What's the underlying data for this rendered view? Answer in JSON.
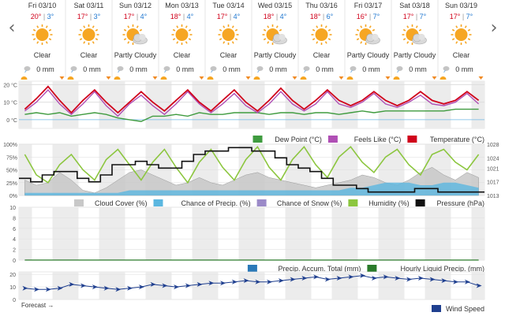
{
  "days": [
    {
      "date": "Fri 03/10",
      "high": "20°",
      "low": "3°",
      "condition": "Clear",
      "icon": "sun-icon",
      "precip": "0 mm"
    },
    {
      "date": "Sat 03/11",
      "high": "17°",
      "low": "3°",
      "condition": "Clear",
      "icon": "sun-icon",
      "precip": "0 mm"
    },
    {
      "date": "Sun 03/12",
      "high": "17°",
      "low": "4°",
      "condition": "Partly Cloudy",
      "icon": "partly-cloudy-icon",
      "precip": "0 mm"
    },
    {
      "date": "Mon 03/13",
      "high": "18°",
      "low": "4°",
      "condition": "Clear",
      "icon": "sun-icon",
      "precip": "0 mm"
    },
    {
      "date": "Tue 03/14",
      "high": "17°",
      "low": "4°",
      "condition": "Clear",
      "icon": "sun-icon",
      "precip": "0 mm"
    },
    {
      "date": "Wed 03/15",
      "high": "18°",
      "low": "4°",
      "condition": "Partly Cloudy",
      "icon": "partly-cloudy-icon",
      "precip": "0 mm"
    },
    {
      "date": "Thu 03/16",
      "high": "18°",
      "low": "6°",
      "condition": "Clear",
      "icon": "sun-icon",
      "precip": "0 mm"
    },
    {
      "date": "Fri 03/17",
      "high": "16°",
      "low": "7°",
      "condition": "Partly Cloudy",
      "icon": "partly-cloudy-icon",
      "precip": "0 mm"
    },
    {
      "date": "Sat 03/18",
      "high": "17°",
      "low": "7°",
      "condition": "Partly Cloudy",
      "icon": "partly-cloudy-icon",
      "precip": "0 mm"
    },
    {
      "date": "Sun 03/19",
      "high": "17°",
      "low": "7°",
      "condition": "Clear",
      "icon": "sun-icon",
      "precip": "0 mm"
    }
  ],
  "colors": {
    "high": "#d0021b",
    "low": "#1f77d0",
    "temperature": "#d0021b",
    "feels_like": "#b04fb5",
    "dew_point": "#3f9b3f",
    "cloud_cover": "#c8c8c8",
    "chance_precip": "#5bb7e0",
    "chance_snow": "#9b8ac8",
    "humidity": "#8cc63f",
    "pressure": "#111111",
    "precip_total": "#2b79b8",
    "hourly_liquid": "#2a7a2a",
    "wind_speed": "#1f3f8f",
    "sun": "#f6a623"
  },
  "forecast_label": "Forecast →",
  "chart_data": [
    {
      "type": "line",
      "chart": "temperature",
      "y_unit": "°C",
      "yticks": [
        "20 °C",
        "10 °C",
        "0 °C"
      ],
      "ylim": [
        -5,
        22
      ],
      "series": [
        {
          "name": "Dew Point (°C)",
          "color": "#3f9b3f",
          "values": [
            3,
            4,
            3,
            4,
            2,
            3,
            4,
            3,
            1,
            0,
            -1,
            2,
            2,
            3,
            2,
            4,
            3,
            3,
            4,
            4,
            4,
            3,
            4,
            4,
            3,
            4,
            4,
            3,
            4,
            5,
            4,
            5,
            5,
            5,
            5,
            5,
            5,
            6,
            6,
            6
          ]
        },
        {
          "name": "Feels Like (°C)",
          "color": "#b04fb5",
          "values": [
            5,
            10,
            17,
            9,
            3,
            9,
            16,
            8,
            2,
            9,
            14,
            8,
            3,
            9,
            16,
            9,
            4,
            9,
            15,
            8,
            4,
            9,
            16,
            9,
            5,
            9,
            16,
            9,
            7,
            10,
            15,
            9,
            7,
            10,
            14,
            9,
            8,
            10,
            15,
            9
          ]
        },
        {
          "name": "Temperature (°C)",
          "color": "#d0021b",
          "values": [
            6,
            12,
            19,
            11,
            4,
            11,
            17,
            10,
            4,
            10,
            16,
            10,
            5,
            11,
            17,
            10,
            5,
            11,
            17,
            10,
            5,
            11,
            18,
            11,
            6,
            11,
            17,
            11,
            8,
            11,
            16,
            11,
            8,
            11,
            16,
            11,
            9,
            11,
            16,
            11
          ]
        }
      ]
    },
    {
      "type": "area",
      "chart": "atmosphere",
      "yticks_left": [
        "100%",
        "75%",
        "50%",
        "25%",
        "0%"
      ],
      "ylim_left": [
        0,
        100
      ],
      "yticks_right": [
        "1028",
        "1024",
        "1021",
        "1017",
        "1013"
      ],
      "ylim_right": [
        1013,
        1028
      ],
      "series": [
        {
          "name": "Cloud Cover (%)",
          "color": "#c8c8c8",
          "axis": "left",
          "values": [
            30,
            20,
            25,
            45,
            30,
            10,
            5,
            15,
            30,
            45,
            50,
            40,
            30,
            20,
            25,
            35,
            25,
            20,
            30,
            40,
            45,
            35,
            30,
            25,
            20,
            15,
            20,
            25,
            30,
            40,
            35,
            25,
            20,
            30,
            45,
            55,
            40,
            30,
            45,
            35
          ]
        },
        {
          "name": "Chance of Precip. (%)",
          "color": "#5bb7e0",
          "axis": "left",
          "values": [
            5,
            5,
            5,
            5,
            5,
            5,
            5,
            5,
            5,
            10,
            10,
            10,
            10,
            10,
            10,
            10,
            10,
            10,
            10,
            10,
            10,
            10,
            10,
            10,
            10,
            10,
            10,
            10,
            15,
            15,
            20,
            25,
            25,
            25,
            20,
            20,
            25,
            25,
            20,
            15
          ]
        },
        {
          "name": "Chance of Snow (%)",
          "color": "#9b8ac8",
          "axis": "left",
          "values": [
            0,
            0,
            0,
            0,
            0,
            0,
            0,
            0,
            0,
            0,
            0,
            0,
            0,
            0,
            0,
            0,
            0,
            0,
            0,
            0,
            0,
            0,
            0,
            0,
            0,
            0,
            0,
            0,
            0,
            0,
            0,
            0,
            0,
            0,
            0,
            0,
            0,
            0,
            0,
            0
          ]
        },
        {
          "name": "Humidity (%)",
          "color": "#8cc63f",
          "axis": "left",
          "values": [
            80,
            40,
            25,
            60,
            80,
            50,
            30,
            70,
            90,
            60,
            30,
            65,
            90,
            55,
            25,
            65,
            90,
            55,
            30,
            70,
            95,
            55,
            30,
            70,
            95,
            60,
            35,
            75,
            95,
            65,
            45,
            75,
            90,
            60,
            40,
            80,
            90,
            65,
            50,
            80
          ]
        },
        {
          "name": "Pressure (hPa)",
          "color": "#111111",
          "axis": "right",
          "values": [
            1018,
            1017,
            1019,
            1020,
            1020,
            1018,
            1017,
            1019,
            1022,
            1022,
            1023,
            1022,
            1021,
            1021,
            1023,
            1025,
            1026,
            1026,
            1027,
            1027,
            1026,
            1026,
            1024,
            1022,
            1021,
            1020,
            1018,
            1016,
            1016,
            1015,
            1014,
            1014,
            1014,
            1014,
            1015,
            1015,
            1014,
            1014,
            1014,
            1014
          ]
        }
      ]
    },
    {
      "type": "bar",
      "chart": "precipitation",
      "yticks": [
        "10",
        "8",
        "6",
        "4",
        "2",
        "0"
      ],
      "ylim": [
        0,
        10
      ],
      "series": [
        {
          "name": "Precip. Accum. Total (mm)",
          "color": "#2b79b8",
          "values": [
            0,
            0,
            0,
            0,
            0,
            0,
            0,
            0,
            0,
            0,
            0,
            0,
            0,
            0,
            0,
            0,
            0,
            0,
            0,
            0,
            0,
            0,
            0,
            0,
            0,
            0,
            0,
            0,
            0,
            0,
            0,
            0,
            0,
            0,
            0,
            0,
            0,
            0,
            0,
            0
          ]
        },
        {
          "name": "Hourly Liquid Precip. (mm)",
          "color": "#2a7a2a",
          "values": [
            0,
            0,
            0,
            0,
            0,
            0,
            0,
            0,
            0,
            0,
            0,
            0,
            0,
            0,
            0,
            0,
            0,
            0,
            0,
            0,
            0,
            0,
            0,
            0,
            0,
            0,
            0,
            0,
            0,
            0,
            0,
            0,
            0,
            0,
            0,
            0,
            0,
            0,
            0,
            0
          ]
        }
      ]
    },
    {
      "type": "line",
      "chart": "wind",
      "yticks": [
        "20",
        "10",
        "0"
      ],
      "ylim": [
        0,
        22
      ],
      "series": [
        {
          "name": "Wind Speed",
          "color": "#1f3f8f",
          "values": [
            9,
            8,
            8,
            9,
            12,
            11,
            10,
            9,
            8,
            9,
            10,
            12,
            11,
            10,
            11,
            12,
            13,
            13,
            14,
            15,
            14,
            14,
            15,
            16,
            17,
            18,
            16,
            17,
            18,
            19,
            17,
            18,
            17,
            16,
            17,
            16,
            15,
            14,
            14,
            11
          ]
        }
      ]
    }
  ]
}
